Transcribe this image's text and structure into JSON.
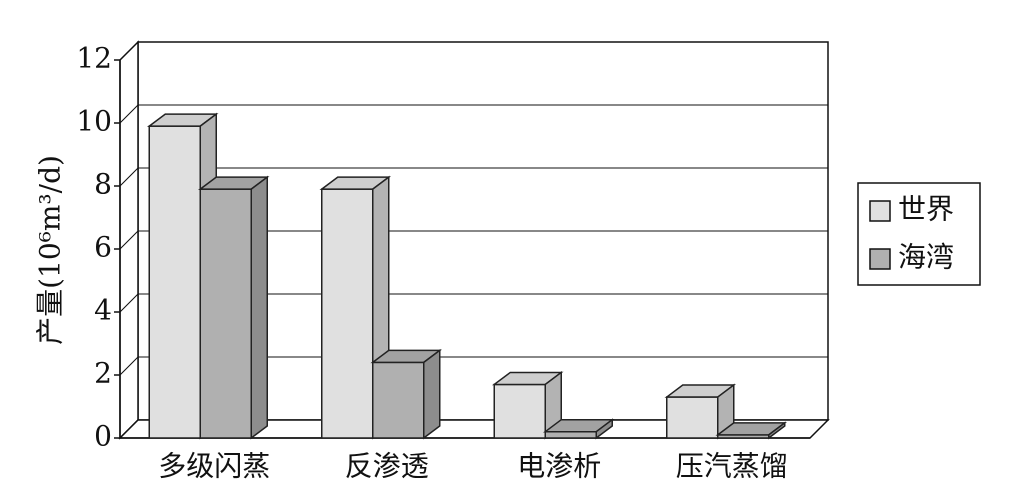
{
  "chart_data": {
    "type": "bar",
    "y_label": "产量(10⁶m³/d)",
    "categories": [
      "多级闪蒸",
      "反渗透",
      "电渗析",
      "压汽蒸馏"
    ],
    "series": [
      {
        "name": "世界",
        "color": "#e0e0e0",
        "values": [
          9.9,
          7.9,
          1.7,
          1.3
        ]
      },
      {
        "name": "海湾",
        "color": "#b0b0b0",
        "values": [
          7.9,
          2.4,
          0.2,
          0.1
        ]
      }
    ],
    "ylim": [
      0,
      12
    ],
    "yticks": [
      0,
      2,
      4,
      6,
      8,
      10,
      12
    ],
    "grid": true,
    "legend": "right"
  }
}
